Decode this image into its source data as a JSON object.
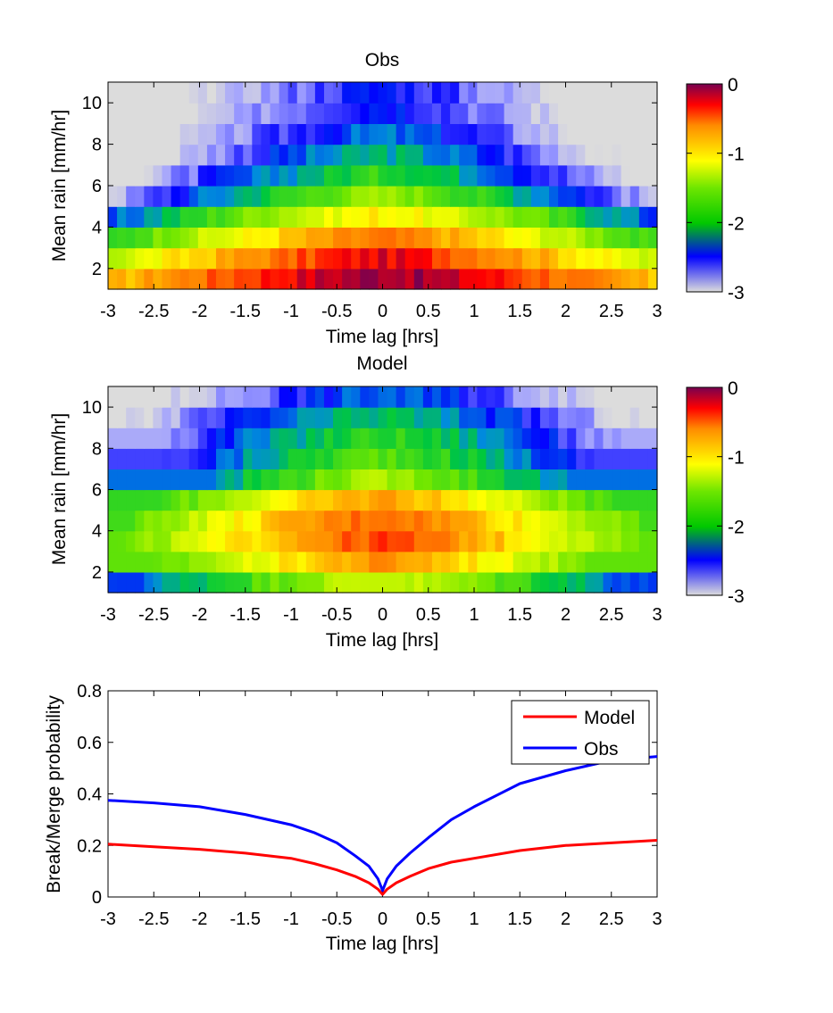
{
  "chart_data": [
    {
      "type": "heatmap",
      "title": "Obs",
      "xlabel": "Time lag [hrs]",
      "ylabel": "Mean rain [mm/hr]",
      "xlim": [
        -3,
        3
      ],
      "ylim": [
        1,
        11
      ],
      "x_ticks": [
        "-3",
        "-2.5",
        "-2",
        "-1.5",
        "-1",
        "-0.5",
        "0",
        "0.5",
        "1",
        "1.5",
        "2",
        "2.5",
        "3"
      ],
      "y_ticks": [
        "2",
        "4",
        "6",
        "8",
        "10"
      ],
      "row_centers": [
        1.5,
        2.5,
        3.5,
        4.5,
        5.5,
        6.5,
        7.5,
        8.5,
        9.5,
        10.5
      ],
      "n_columns": 61,
      "log10_profile": {
        "peak": [
          -0.05,
          -0.25,
          -0.6,
          -1.05,
          -1.5,
          -1.85,
          -2.1,
          -2.3,
          -2.4,
          -2.45
        ],
        "width": [
          1.6,
          2.1,
          2.4,
          2.5,
          2.6,
          2.4,
          2.2,
          2.0,
          1.9,
          1.8
        ],
        "min_value": [
          -2.6,
          -2.1,
          -2.2,
          -2.6,
          -3.0,
          -3.0,
          -3.0,
          -3.0,
          -3.0,
          -3.0
        ]
      },
      "colorbar": {
        "min": -3,
        "max": 0,
        "ticks": [
          "0",
          "-1",
          "-2",
          "-3"
        ]
      }
    },
    {
      "type": "heatmap",
      "title": "Model",
      "xlabel": "Time lag [hrs]",
      "ylabel": "Mean rain [mm/hr]",
      "xlim": [
        -3,
        3
      ],
      "ylim": [
        1,
        11
      ],
      "x_ticks": [
        "-3",
        "-2.5",
        "-2",
        "-1.5",
        "-1",
        "-0.5",
        "0",
        "0.5",
        "1",
        "1.5",
        "2",
        "2.5",
        "3"
      ],
      "y_ticks": [
        "2",
        "4",
        "6",
        "8",
        "10"
      ],
      "row_centers": [
        1.5,
        2.5,
        3.5,
        4.5,
        5.5,
        6.5,
        7.5,
        8.5,
        9.5,
        10.5
      ],
      "n_columns": 61,
      "log10_profile": {
        "peak": [
          -1.3,
          -0.7,
          -0.45,
          -0.5,
          -0.75,
          -1.45,
          -1.7,
          -1.85,
          -2.05,
          -2.3
        ],
        "width": [
          2.2,
          2.5,
          2.5,
          2.5,
          2.6,
          2.6,
          2.4,
          2.2,
          2.0,
          1.8
        ],
        "min_value": [
          -2.4,
          -1.7,
          -1.7,
          -1.8,
          -1.85,
          -2.3,
          -2.6,
          -2.8,
          -3.0,
          -3.0
        ]
      },
      "colorbar": {
        "min": -3,
        "max": 0,
        "ticks": [
          "0",
          "-1",
          "-2",
          "-3"
        ]
      }
    },
    {
      "type": "line",
      "title": "",
      "xlabel": "Time lag [hrs]",
      "ylabel": "Break/Merge probability",
      "xlim": [
        -3,
        3
      ],
      "ylim": [
        0,
        0.8
      ],
      "x_ticks": [
        "-3",
        "-2.5",
        "-2",
        "-1.5",
        "-1",
        "-0.5",
        "0",
        "0.5",
        "1",
        "1.5",
        "2",
        "2.5",
        "3"
      ],
      "y_ticks": [
        "0",
        "0.2",
        "0.4",
        "0.6",
        "0.8"
      ],
      "legend_position": "top-right",
      "x": [
        -3,
        -2.5,
        -2,
        -1.5,
        -1,
        -0.75,
        -0.5,
        -0.3,
        -0.15,
        -0.05,
        0,
        0.05,
        0.15,
        0.3,
        0.5,
        0.75,
        1,
        1.5,
        2,
        2.5,
        3
      ],
      "series": [
        {
          "name": "Model",
          "color": "#ff0000",
          "values": [
            0.205,
            0.195,
            0.185,
            0.17,
            0.15,
            0.13,
            0.105,
            0.08,
            0.055,
            0.03,
            0.01,
            0.03,
            0.055,
            0.08,
            0.11,
            0.135,
            0.15,
            0.18,
            0.2,
            0.21,
            0.22
          ]
        },
        {
          "name": "Obs",
          "color": "#0000ff",
          "values": [
            0.375,
            0.365,
            0.35,
            0.32,
            0.28,
            0.25,
            0.21,
            0.16,
            0.12,
            0.07,
            0.025,
            0.07,
            0.12,
            0.17,
            0.23,
            0.3,
            0.35,
            0.44,
            0.49,
            0.53,
            0.545
          ]
        }
      ]
    }
  ]
}
